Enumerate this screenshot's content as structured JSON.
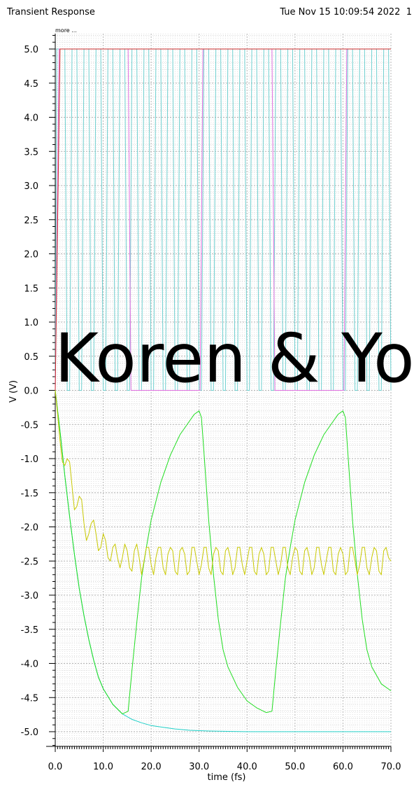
{
  "header": {
    "title": "Transient Response",
    "datetime": "Tue Nov 15 10:09:54 2022",
    "page_number": "1"
  },
  "more_link": "more ...",
  "overlay_text": "Koren & Yoa",
  "chart_data": {
    "type": "line",
    "xlabel": "time (fs)",
    "ylabel": "V (V)",
    "xlim": [
      0,
      70
    ],
    "ylim": [
      -5.25,
      5.2
    ],
    "x_ticks": [
      0,
      10,
      20,
      30,
      40,
      50,
      60,
      70
    ],
    "x_tick_labels": [
      "0.0",
      "10.0",
      "20.0",
      "30.0",
      "40.0",
      "50.0",
      "60.0",
      "70.0"
    ],
    "y_ticks": [
      5,
      4.5,
      4,
      3.5,
      3,
      2.5,
      2,
      1.5,
      1,
      0.5,
      0,
      -0.5,
      -1,
      -1.5,
      -2,
      -2.5,
      -3,
      -3.5,
      -4,
      -4.5,
      -5
    ],
    "y_tick_labels": [
      "5.0",
      "4.5",
      "4.0",
      "3.5",
      "3.0",
      "2.5",
      "2.0",
      "1.5",
      "1.0",
      "0.5",
      "0.0",
      "-0.5",
      "-1.0",
      "-1.5",
      "-2.0",
      "-2.5",
      "-3.0",
      "-3.5",
      "-4.0",
      "-4.5",
      "-5.0"
    ],
    "grid": true,
    "series": [
      {
        "color": "#6fd0d0",
        "x": [
          0,
          0.3,
          1,
          2,
          2.5,
          3,
          3.5,
          4.5,
          5,
          5.5,
          6,
          7,
          7.5,
          8,
          8.5,
          9.5,
          10,
          10.5,
          11,
          12,
          12.5,
          13,
          13.5,
          14.5,
          15,
          15.5,
          16,
          17,
          17.5,
          18,
          18.5,
          19.5,
          20,
          20.5,
          21,
          22,
          22.5,
          23,
          23.5,
          24.5,
          25,
          25.5,
          26,
          27,
          27.5,
          28,
          28.5,
          29.5,
          30,
          30.5,
          31,
          32,
          32.5,
          33,
          33.5,
          34.5,
          35,
          35.5,
          36,
          37,
          37.5,
          38,
          38.5,
          39.5,
          40,
          40.5,
          41,
          42,
          42.5,
          43,
          43.5,
          44.5,
          45,
          45.5,
          46,
          47,
          47.5,
          48,
          48.5,
          49.5,
          50,
          50.5,
          51,
          52,
          52.5,
          53,
          53.5,
          54.5,
          55,
          55.5,
          56,
          57,
          57.5,
          58,
          58.5,
          59.5,
          60,
          60.5,
          61,
          62,
          62.5,
          63,
          63.5,
          64.5,
          65,
          65.5,
          66,
          67,
          67.5,
          68,
          68.5,
          69.5,
          70
        ],
        "y": [
          0,
          5,
          5,
          5,
          0,
          0,
          5,
          5,
          0,
          0,
          5,
          5,
          0,
          0,
          5,
          5,
          0,
          0,
          5,
          5,
          0,
          0,
          5,
          5,
          0,
          0,
          5,
          5,
          0,
          0,
          5,
          5,
          0,
          0,
          5,
          5,
          0,
          0,
          5,
          5,
          0,
          0,
          5,
          5,
          0,
          0,
          5,
          5,
          0,
          0,
          5,
          5,
          0,
          0,
          5,
          5,
          0,
          0,
          5,
          5,
          0,
          0,
          5,
          5,
          0,
          0,
          5,
          5,
          0,
          0,
          5,
          5,
          0,
          0,
          5,
          5,
          0,
          0,
          5,
          5,
          0,
          0,
          5,
          5,
          0,
          0,
          5,
          5,
          0,
          0,
          5,
          5,
          0,
          0,
          5,
          5,
          0,
          0,
          5,
          5,
          0,
          0,
          5,
          5,
          0,
          0,
          5,
          5,
          0,
          0,
          5,
          5,
          0
        ]
      },
      {
        "color": "#e070e0",
        "x": [
          0,
          0.8,
          15.2,
          15.8,
          30.2,
          30.8,
          45.2,
          45.8,
          60.2,
          60.8,
          70
        ],
        "y": [
          0,
          5,
          5,
          0,
          0,
          5,
          5,
          0,
          0,
          5,
          5
        ]
      },
      {
        "color": "#cc2a2a",
        "x": [
          0,
          1,
          70
        ],
        "y": [
          0,
          5,
          5
        ]
      },
      {
        "color": "#20d0c8",
        "x": [
          0,
          1,
          2,
          3,
          4,
          5,
          6,
          7,
          8,
          9,
          10,
          12,
          14,
          16,
          18,
          20,
          22,
          25,
          28,
          32,
          36,
          40,
          45,
          50,
          55,
          60,
          65,
          70
        ],
        "y": [
          0,
          -0.6,
          -1.25,
          -1.85,
          -2.4,
          -2.9,
          -3.3,
          -3.65,
          -3.95,
          -4.2,
          -4.37,
          -4.6,
          -4.74,
          -4.82,
          -4.87,
          -4.91,
          -4.93,
          -4.96,
          -4.98,
          -4.99,
          -4.995,
          -5.0,
          -5.0,
          -5.0,
          -5.0,
          -5.0,
          -5.0,
          -5.0
        ]
      },
      {
        "color": "#20dd20",
        "x": [
          0,
          1,
          2,
          3,
          4,
          5,
          6,
          7,
          8,
          9,
          10,
          12,
          14,
          15.2,
          16,
          17,
          18,
          19,
          20,
          22,
          24,
          26,
          28,
          29,
          30,
          30.5,
          31,
          32,
          33,
          34,
          35,
          36,
          38,
          40,
          42,
          44,
          45.2,
          46,
          47,
          48,
          49,
          50,
          52,
          54,
          56,
          58,
          59,
          60,
          60.5,
          61,
          62,
          63,
          64,
          65,
          66,
          68,
          70
        ],
        "y": [
          0,
          -0.6,
          -1.25,
          -1.85,
          -2.4,
          -2.9,
          -3.3,
          -3.65,
          -3.95,
          -4.2,
          -4.37,
          -4.6,
          -4.74,
          -4.7,
          -4.1,
          -3.4,
          -2.75,
          -2.3,
          -1.9,
          -1.35,
          -0.95,
          -0.65,
          -0.45,
          -0.35,
          -0.3,
          -0.4,
          -0.9,
          -1.9,
          -2.7,
          -3.35,
          -3.8,
          -4.05,
          -4.35,
          -4.55,
          -4.65,
          -4.72,
          -4.7,
          -4.1,
          -3.4,
          -2.75,
          -2.3,
          -1.9,
          -1.35,
          -0.95,
          -0.65,
          -0.45,
          -0.35,
          -0.3,
          -0.4,
          -0.9,
          -1.9,
          -2.7,
          -3.35,
          -3.8,
          -4.05,
          -4.3,
          -4.4
        ]
      },
      {
        "color": "#c8c800",
        "x": [
          0,
          0.5,
          1,
          1.5,
          2,
          2.5,
          3,
          3.5,
          4,
          4.5,
          5,
          5.5,
          6,
          6.5,
          7,
          7.5,
          8,
          8.5,
          9,
          9.5,
          10,
          10.5,
          11,
          11.5,
          12,
          12.5,
          13,
          13.5,
          14,
          14.5,
          15,
          15.5,
          16,
          16.5,
          17,
          17.5,
          18,
          18.5,
          19,
          19.5,
          20,
          20.5,
          21,
          21.5,
          22,
          22.5,
          23,
          23.5,
          24,
          24.5,
          25,
          25.5,
          26,
          26.5,
          27,
          27.5,
          28,
          28.5,
          29,
          29.5,
          30,
          30.5,
          31,
          31.5,
          32,
          32.5,
          33,
          33.5,
          34,
          34.5,
          35,
          35.5,
          36,
          36.5,
          37,
          37.5,
          38,
          38.5,
          39,
          39.5,
          40,
          40.5,
          41,
          41.5,
          42,
          42.5,
          43,
          43.5,
          44,
          44.5,
          45,
          45.5,
          46,
          46.5,
          47,
          47.5,
          48,
          48.5,
          49,
          49.5,
          50,
          50.5,
          51,
          51.5,
          52,
          52.5,
          53,
          53.5,
          54,
          54.5,
          55,
          55.5,
          56,
          56.5,
          57,
          57.5,
          58,
          58.5,
          59,
          59.5,
          60,
          60.5,
          61,
          61.5,
          62,
          62.5,
          63,
          63.5,
          64,
          64.5,
          65,
          65.5,
          66,
          66.5,
          67,
          67.5,
          68,
          68.5,
          69,
          69.5,
          70
        ],
        "y": [
          0,
          -0.35,
          -0.75,
          -1.05,
          -1.1,
          -1.0,
          -1.05,
          -1.4,
          -1.75,
          -1.7,
          -1.55,
          -1.6,
          -1.95,
          -2.2,
          -2.1,
          -1.95,
          -1.9,
          -2.1,
          -2.35,
          -2.3,
          -2.1,
          -2.2,
          -2.45,
          -2.5,
          -2.3,
          -2.25,
          -2.45,
          -2.6,
          -2.45,
          -2.25,
          -2.35,
          -2.6,
          -2.65,
          -2.35,
          -2.25,
          -2.45,
          -2.7,
          -2.5,
          -2.3,
          -2.3,
          -2.55,
          -2.7,
          -2.45,
          -2.3,
          -2.3,
          -2.6,
          -2.7,
          -2.4,
          -2.3,
          -2.35,
          -2.65,
          -2.7,
          -2.35,
          -2.3,
          -2.4,
          -2.7,
          -2.65,
          -2.3,
          -2.3,
          -2.5,
          -2.7,
          -2.55,
          -2.3,
          -2.3,
          -2.6,
          -2.7,
          -2.4,
          -2.3,
          -2.35,
          -2.65,
          -2.7,
          -2.35,
          -2.3,
          -2.45,
          -2.7,
          -2.6,
          -2.3,
          -2.3,
          -2.55,
          -2.7,
          -2.5,
          -2.3,
          -2.3,
          -2.65,
          -2.7,
          -2.4,
          -2.3,
          -2.4,
          -2.7,
          -2.65,
          -2.3,
          -2.3,
          -2.5,
          -2.7,
          -2.55,
          -2.3,
          -2.3,
          -2.6,
          -2.7,
          -2.45,
          -2.3,
          -2.35,
          -2.65,
          -2.7,
          -2.35,
          -2.3,
          -2.45,
          -2.7,
          -2.6,
          -2.3,
          -2.3,
          -2.55,
          -2.7,
          -2.5,
          -2.3,
          -2.3,
          -2.65,
          -2.7,
          -2.4,
          -2.3,
          -2.4,
          -2.7,
          -2.65,
          -2.3,
          -2.3,
          -2.5,
          -2.7,
          -2.55,
          -2.3,
          -2.3,
          -2.6,
          -2.7,
          -2.45,
          -2.3,
          -2.35,
          -2.65,
          -2.7,
          -2.35,
          -2.3,
          -2.45,
          -2.5
        ]
      }
    ]
  }
}
